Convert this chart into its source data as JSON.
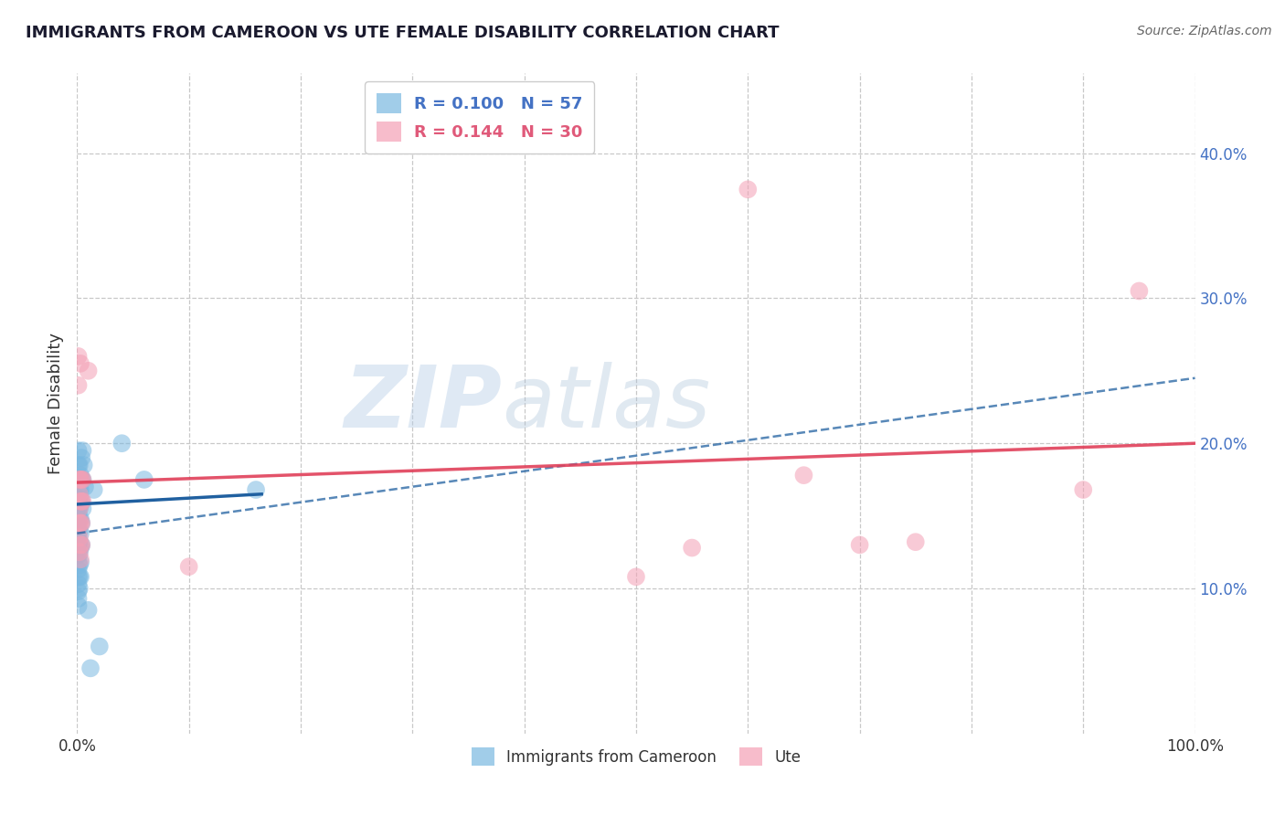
{
  "title": "IMMIGRANTS FROM CAMEROON VS UTE FEMALE DISABILITY CORRELATION CHART",
  "source_text": "Source: ZipAtlas.com",
  "ylabel": "Female Disability",
  "xlim": [
    0,
    1.0
  ],
  "ylim": [
    0,
    0.455
  ],
  "xticks": [
    0.0,
    0.1,
    0.2,
    0.3,
    0.4,
    0.5,
    0.6,
    0.7,
    0.8,
    0.9,
    1.0
  ],
  "ytick_positions": [
    0.1,
    0.2,
    0.3,
    0.4
  ],
  "ytick_labels": [
    "10.0%",
    "20.0%",
    "30.0%",
    "40.0%"
  ],
  "grid_color": "#c8c8c8",
  "background_color": "#ffffff",
  "watermark_zip": "ZIP",
  "watermark_atlas": "atlas",
  "legend_R1": "0.100",
  "legend_N1": "57",
  "legend_R2": "0.144",
  "legend_N2": "30",
  "blue_color": "#7ab8e0",
  "pink_color": "#f4a0b5",
  "blue_line_color": "#2060a0",
  "pink_line_color": "#e0405a",
  "blue_scatter": [
    [
      0.001,
      0.195
    ],
    [
      0.001,
      0.185
    ],
    [
      0.001,
      0.175
    ],
    [
      0.001,
      0.168
    ],
    [
      0.001,
      0.162
    ],
    [
      0.001,
      0.158
    ],
    [
      0.001,
      0.153
    ],
    [
      0.001,
      0.148
    ],
    [
      0.001,
      0.143
    ],
    [
      0.001,
      0.138
    ],
    [
      0.001,
      0.133
    ],
    [
      0.001,
      0.128
    ],
    [
      0.001,
      0.123
    ],
    [
      0.001,
      0.118
    ],
    [
      0.001,
      0.113
    ],
    [
      0.001,
      0.108
    ],
    [
      0.001,
      0.103
    ],
    [
      0.001,
      0.098
    ],
    [
      0.001,
      0.093
    ],
    [
      0.001,
      0.088
    ],
    [
      0.002,
      0.185
    ],
    [
      0.002,
      0.175
    ],
    [
      0.002,
      0.168
    ],
    [
      0.002,
      0.162
    ],
    [
      0.002,
      0.155
    ],
    [
      0.002,
      0.148
    ],
    [
      0.002,
      0.14
    ],
    [
      0.002,
      0.132
    ],
    [
      0.002,
      0.124
    ],
    [
      0.002,
      0.116
    ],
    [
      0.002,
      0.108
    ],
    [
      0.002,
      0.1
    ],
    [
      0.003,
      0.178
    ],
    [
      0.003,
      0.168
    ],
    [
      0.003,
      0.158
    ],
    [
      0.003,
      0.148
    ],
    [
      0.003,
      0.138
    ],
    [
      0.003,
      0.128
    ],
    [
      0.003,
      0.118
    ],
    [
      0.003,
      0.108
    ],
    [
      0.004,
      0.19
    ],
    [
      0.004,
      0.175
    ],
    [
      0.004,
      0.16
    ],
    [
      0.004,
      0.145
    ],
    [
      0.004,
      0.13
    ],
    [
      0.005,
      0.195
    ],
    [
      0.005,
      0.175
    ],
    [
      0.005,
      0.155
    ],
    [
      0.006,
      0.185
    ],
    [
      0.007,
      0.17
    ],
    [
      0.01,
      0.085
    ],
    [
      0.012,
      0.045
    ],
    [
      0.015,
      0.168
    ],
    [
      0.02,
      0.06
    ],
    [
      0.04,
      0.2
    ],
    [
      0.06,
      0.175
    ],
    [
      0.16,
      0.168
    ]
  ],
  "pink_scatter": [
    [
      0.001,
      0.26
    ],
    [
      0.001,
      0.24
    ],
    [
      0.002,
      0.175
    ],
    [
      0.002,
      0.165
    ],
    [
      0.002,
      0.155
    ],
    [
      0.002,
      0.145
    ],
    [
      0.002,
      0.135
    ],
    [
      0.002,
      0.125
    ],
    [
      0.003,
      0.255
    ],
    [
      0.003,
      0.175
    ],
    [
      0.003,
      0.16
    ],
    [
      0.003,
      0.145
    ],
    [
      0.003,
      0.13
    ],
    [
      0.003,
      0.12
    ],
    [
      0.004,
      0.175
    ],
    [
      0.004,
      0.16
    ],
    [
      0.004,
      0.145
    ],
    [
      0.004,
      0.13
    ],
    [
      0.005,
      0.175
    ],
    [
      0.005,
      0.16
    ],
    [
      0.01,
      0.25
    ],
    [
      0.1,
      0.115
    ],
    [
      0.5,
      0.108
    ],
    [
      0.55,
      0.128
    ],
    [
      0.6,
      0.375
    ],
    [
      0.65,
      0.178
    ],
    [
      0.7,
      0.13
    ],
    [
      0.75,
      0.132
    ],
    [
      0.9,
      0.168
    ],
    [
      0.95,
      0.305
    ]
  ],
  "blue_solid_trend": [
    0.0,
    0.158,
    0.165,
    0.165
  ],
  "blue_dashed_trend": [
    0.0,
    0.138,
    1.0,
    0.245
  ],
  "pink_trend": [
    0.0,
    0.173,
    1.0,
    0.2
  ]
}
